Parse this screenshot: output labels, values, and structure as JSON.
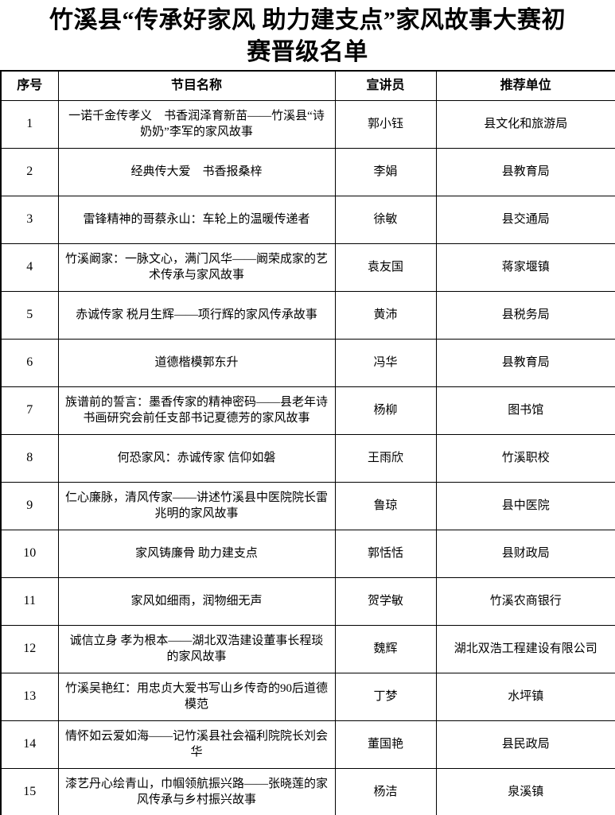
{
  "title": {
    "line1": "竹溪县“传承好家风 助力建支点”家风故事大赛初",
    "line2": "赛晋级名单"
  },
  "table": {
    "headers": {
      "no": "序号",
      "program": "节目名称",
      "speaker": "宣讲员",
      "unit": "推荐单位"
    },
    "rows": [
      {
        "no": "1",
        "program": "一诺千金传孝义　书香润泽育新苗——竹溪县“诗奶奶”李军的家风故事",
        "speaker": "郭小钰",
        "unit": "县文化和旅游局"
      },
      {
        "no": "2",
        "program": "经典传大爱　书香报桑梓",
        "speaker": "李娟",
        "unit": "县教育局"
      },
      {
        "no": "3",
        "program": "雷锋精神的哥蔡永山：车轮上的温暖传递者",
        "speaker": "徐敏",
        "unit": "县交通局"
      },
      {
        "no": "4",
        "program": "竹溪阚家：一脉文心，满门风华——阚荣成家的艺术传承与家风故事",
        "speaker": "袁友国",
        "unit": "蒋家堰镇"
      },
      {
        "no": "5",
        "program": "赤诚传家 税月生辉——项行辉的家风传承故事",
        "speaker": "黄沛",
        "unit": "县税务局"
      },
      {
        "no": "6",
        "program": "道德楷模郭东升",
        "speaker": "冯华",
        "unit": "县教育局"
      },
      {
        "no": "7",
        "program": "族谱前的誓言：墨香传家的精神密码——县老年诗书画研究会前任支部书记夏德芳的家风故事",
        "speaker": "杨柳",
        "unit": "图书馆"
      },
      {
        "no": "8",
        "program": "何恐家风：赤诚传家 信仰如磐",
        "speaker": "王雨欣",
        "unit": "竹溪职校"
      },
      {
        "no": "9",
        "program": "仁心廉脉，清风传家——讲述竹溪县中医院院长雷兆明的家风故事",
        "speaker": "鲁琼",
        "unit": "县中医院"
      },
      {
        "no": "10",
        "program": "家风铸廉骨 助力建支点",
        "speaker": "郭恬恬",
        "unit": "县财政局"
      },
      {
        "no": "11",
        "program": "家风如细雨，润物细无声",
        "speaker": "贺学敏",
        "unit": "竹溪农商银行"
      },
      {
        "no": "12",
        "program": "诚信立身 孝为根本——湖北双浩建设董事长程琰的家风故事",
        "speaker": "魏辉",
        "unit": "湖北双浩工程建设有限公司"
      },
      {
        "no": "13",
        "program": "竹溪吴艳红：用忠贞大爱书写山乡传奇的90后道德模范",
        "speaker": "丁梦",
        "unit": "水坪镇"
      },
      {
        "no": "14",
        "program": "情怀如云爱如海——记竹溪县社会福利院院长刘会华",
        "speaker": "董国艳",
        "unit": "县民政局"
      },
      {
        "no": "15",
        "program": "漆艺丹心绘青山，巾帼领航振兴路——张晓莲的家风传承与乡村振兴故事",
        "speaker": "杨洁",
        "unit": "泉溪镇"
      }
    ]
  }
}
